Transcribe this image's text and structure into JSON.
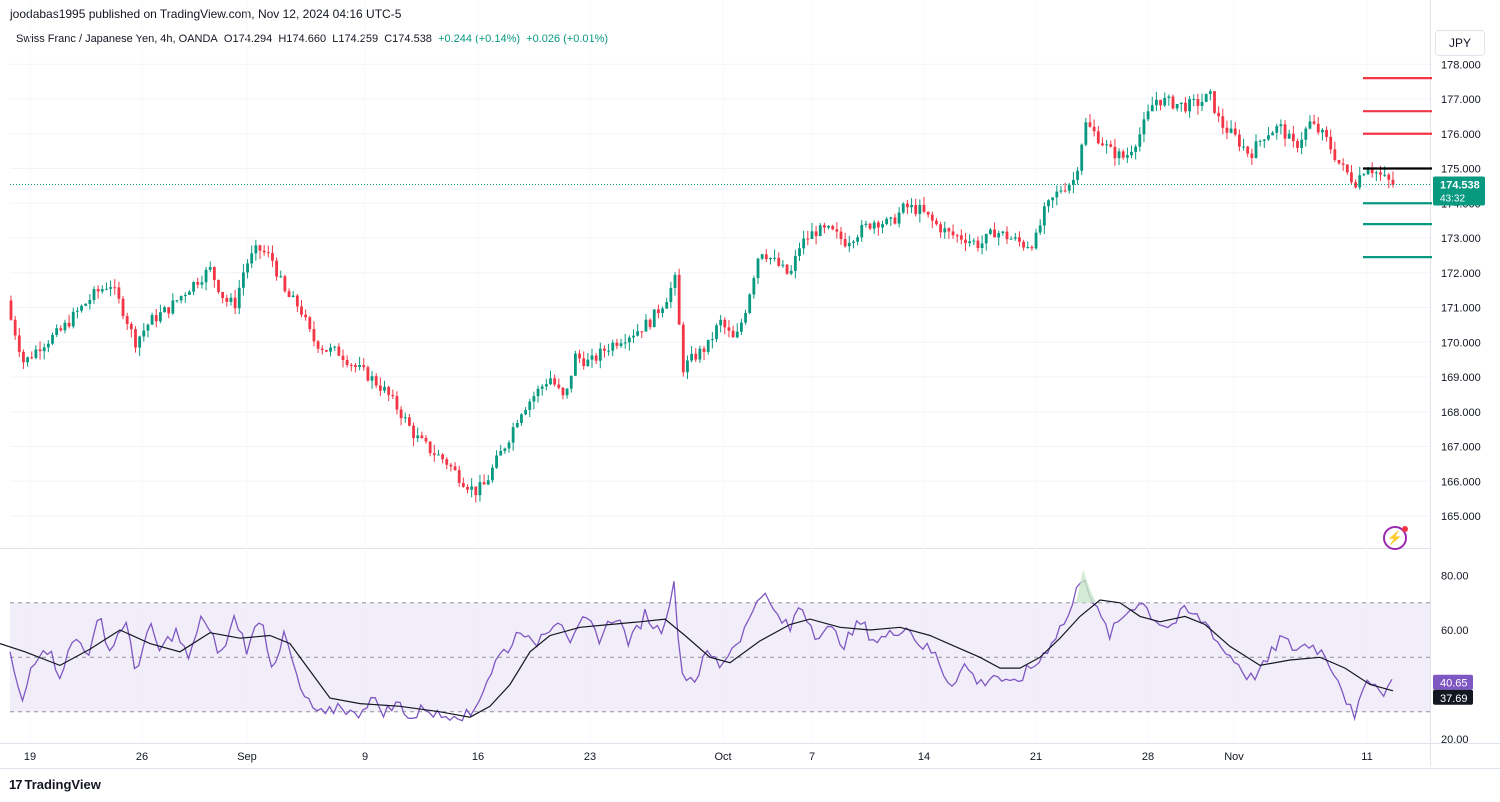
{
  "header": {
    "published": "joodabas1995 published on TradingView.com, Nov 12, 2024 04:16 UTC-5"
  },
  "legend": {
    "symbol": "Swiss Franc / Japanese Yen, 4h, OANDA",
    "open": "O174.294",
    "high": "H174.660",
    "low": "L174.259",
    "close": "C174.538",
    "change": "+0.244 (+0.14%)",
    "extra": "+0.026 (+0.01%)"
  },
  "currency_button": "JPY",
  "price_label": {
    "price": "174.538",
    "countdown": "43:32"
  },
  "rsi_labels": {
    "rsi": "40.65",
    "ma": "37.69"
  },
  "brand": {
    "name": "TradingView"
  },
  "colors": {
    "up": "#089981",
    "down": "#f23645",
    "rsi": "#7e57c2",
    "rsi_band": "#ede7f6"
  },
  "chart_data": [
    {
      "type": "candlestick",
      "title": "Swiss Franc / Japanese Yen, 4h, OANDA",
      "y_ticks": [
        "165.000",
        "166.000",
        "167.000",
        "168.000",
        "169.000",
        "170.000",
        "171.000",
        "172.000",
        "173.000",
        "174.000",
        "175.000",
        "176.000",
        "177.000",
        "178.000"
      ],
      "ylim": [
        164.3,
        178.9
      ],
      "x_labels": [
        "19",
        "26",
        "Sep",
        "9",
        "16",
        "23",
        "Oct",
        "7",
        "14",
        "21",
        "28",
        "Nov",
        "11"
      ],
      "last_price": 174.538,
      "price_path": [
        [
          0,
          171.2
        ],
        [
          12,
          170.6
        ],
        [
          24,
          169.4
        ],
        [
          40,
          169.9
        ],
        [
          60,
          170.3
        ],
        [
          75,
          170.8
        ],
        [
          95,
          171.4
        ],
        [
          110,
          171.7
        ],
        [
          125,
          170.8
        ],
        [
          135,
          170.0
        ],
        [
          150,
          170.6
        ],
        [
          170,
          171.0
        ],
        [
          190,
          171.6
        ],
        [
          210,
          172.1
        ],
        [
          225,
          171.2
        ],
        [
          235,
          171.1
        ],
        [
          245,
          172.2
        ],
        [
          258,
          172.7
        ],
        [
          272,
          172.4
        ],
        [
          285,
          171.4
        ],
        [
          300,
          171.0
        ],
        [
          312,
          170.1
        ],
        [
          325,
          169.8
        ],
        [
          340,
          169.7
        ],
        [
          355,
          169.3
        ],
        [
          370,
          169.0
        ],
        [
          385,
          168.6
        ],
        [
          400,
          168.0
        ],
        [
          415,
          167.3
        ],
        [
          430,
          166.9
        ],
        [
          445,
          166.6
        ],
        [
          460,
          166.1
        ],
        [
          475,
          165.7
        ],
        [
          485,
          165.9
        ],
        [
          495,
          166.5
        ],
        [
          508,
          167.2
        ],
        [
          520,
          168.0
        ],
        [
          535,
          168.5
        ],
        [
          550,
          169.0
        ],
        [
          565,
          168.3
        ],
        [
          575,
          169.6
        ],
        [
          590,
          169.4
        ],
        [
          605,
          169.8
        ],
        [
          620,
          170.1
        ],
        [
          635,
          170.3
        ],
        [
          650,
          170.6
        ],
        [
          665,
          171.2
        ],
        [
          677,
          171.9
        ],
        [
          681,
          169.2
        ],
        [
          695,
          169.6
        ],
        [
          708,
          169.9
        ],
        [
          720,
          170.6
        ],
        [
          735,
          170.0
        ],
        [
          745,
          170.9
        ],
        [
          760,
          172.7
        ],
        [
          775,
          172.3
        ],
        [
          790,
          171.9
        ],
        [
          800,
          172.8
        ],
        [
          815,
          173.2
        ],
        [
          830,
          173.2
        ],
        [
          845,
          172.9
        ],
        [
          860,
          173.2
        ],
        [
          875,
          173.5
        ],
        [
          890,
          173.4
        ],
        [
          905,
          173.9
        ],
        [
          920,
          173.8
        ],
        [
          935,
          173.4
        ],
        [
          950,
          173.1
        ],
        [
          965,
          173.0
        ],
        [
          980,
          172.8
        ],
        [
          995,
          173.2
        ],
        [
          1010,
          173.0
        ],
        [
          1025,
          172.8
        ],
        [
          1035,
          172.9
        ],
        [
          1045,
          173.8
        ],
        [
          1060,
          174.4
        ],
        [
          1075,
          174.7
        ],
        [
          1085,
          176.3
        ],
        [
          1095,
          176.0
        ],
        [
          1110,
          175.5
        ],
        [
          1125,
          175.3
        ],
        [
          1140,
          176.0
        ],
        [
          1155,
          177.0
        ],
        [
          1170,
          176.9
        ],
        [
          1185,
          176.8
        ],
        [
          1200,
          176.9
        ],
        [
          1210,
          177.1
        ],
        [
          1220,
          176.3
        ],
        [
          1235,
          175.9
        ],
        [
          1250,
          175.4
        ],
        [
          1265,
          176.0
        ],
        [
          1280,
          176.2
        ],
        [
          1295,
          175.6
        ],
        [
          1310,
          176.3
        ],
        [
          1325,
          175.9
        ],
        [
          1340,
          175.1
        ],
        [
          1355,
          174.6
        ],
        [
          1367,
          175.1
        ],
        [
          1380,
          174.8
        ],
        [
          1393,
          174.54
        ]
      ]
    },
    {
      "type": "line",
      "title": "RSI",
      "y_ticks": [
        "20.00",
        "40.00",
        "60.00",
        "80.00"
      ],
      "ylim": [
        18.5,
        83.0
      ],
      "bands": {
        "upper": 70,
        "middle": 50,
        "lower": 30
      },
      "series": [
        {
          "values": [
            [
              0,
              56
            ],
            [
              10,
              51
            ],
            [
              22,
              32
            ],
            [
              32,
              48
            ],
            [
              45,
              55
            ],
            [
              60,
              44
            ],
            [
              75,
              57
            ],
            [
              90,
              52
            ],
            [
              100,
              65
            ],
            [
              110,
              52
            ],
            [
              125,
              64
            ],
            [
              135,
              45
            ],
            [
              150,
              61
            ],
            [
              160,
              52
            ],
            [
              175,
              60
            ],
            [
              190,
              48
            ],
            [
              200,
              66
            ],
            [
              210,
              58
            ],
            [
              222,
              51
            ],
            [
              235,
              65
            ],
            [
              248,
              52
            ],
            [
              260,
              66
            ],
            [
              272,
              47
            ],
            [
              285,
              58
            ],
            [
              300,
              38
            ],
            [
              310,
              32
            ],
            [
              325,
              28
            ],
            [
              340,
              33
            ],
            [
              355,
              28
            ],
            [
              370,
              35
            ],
            [
              385,
              30
            ],
            [
              400,
              33
            ],
            [
              412,
              27
            ],
            [
              425,
              32
            ],
            [
              440,
              28
            ],
            [
              455,
              30
            ],
            [
              470,
              28
            ],
            [
              485,
              40
            ],
            [
              498,
              50
            ],
            [
              512,
              55
            ],
            [
              522,
              62
            ],
            [
              532,
              53
            ],
            [
              545,
              60
            ],
            [
              560,
              65
            ],
            [
              572,
              55
            ],
            [
              585,
              64
            ],
            [
              600,
              57
            ],
            [
              615,
              66
            ],
            [
              630,
              55
            ],
            [
              645,
              66
            ],
            [
              660,
              59
            ],
            [
              675,
              77
            ],
            [
              681,
              44
            ],
            [
              695,
              42
            ],
            [
              708,
              52
            ],
            [
              720,
              47
            ],
            [
              735,
              55
            ],
            [
              748,
              62
            ],
            [
              760,
              75
            ],
            [
              775,
              66
            ],
            [
              790,
              60
            ],
            [
              800,
              70
            ],
            [
              815,
              59
            ],
            [
              830,
              60
            ],
            [
              845,
              55
            ],
            [
              860,
              63
            ],
            [
              875,
              56
            ],
            [
              890,
              58
            ],
            [
              905,
              62
            ],
            [
              920,
              55
            ],
            [
              935,
              51
            ],
            [
              950,
              40
            ],
            [
              965,
              47
            ],
            [
              980,
              40
            ],
            [
              995,
              44
            ],
            [
              1010,
              39
            ],
            [
              1025,
              44
            ],
            [
              1040,
              49
            ],
            [
              1055,
              58
            ],
            [
              1070,
              66
            ],
            [
              1083,
              82
            ],
            [
              1095,
              68
            ],
            [
              1110,
              58
            ],
            [
              1125,
              66
            ],
            [
              1140,
              71
            ],
            [
              1155,
              64
            ],
            [
              1170,
              61
            ],
            [
              1185,
              67
            ],
            [
              1200,
              64
            ],
            [
              1210,
              61
            ],
            [
              1222,
              53
            ],
            [
              1235,
              49
            ],
            [
              1250,
              42
            ],
            [
              1265,
              47
            ],
            [
              1280,
              57
            ],
            [
              1295,
              53
            ],
            [
              1310,
              55
            ],
            [
              1325,
              51
            ],
            [
              1340,
              41
            ],
            [
              1355,
              26
            ],
            [
              1367,
              44
            ],
            [
              1380,
              37
            ],
            [
              1393,
              40.65
            ]
          ]
        },
        {
          "values": [
            [
              0,
              55
            ],
            [
              25,
              52
            ],
            [
              60,
              47
            ],
            [
              90,
              53
            ],
            [
              120,
              60
            ],
            [
              150,
              55
            ],
            [
              180,
              52
            ],
            [
              210,
              59
            ],
            [
              240,
              57
            ],
            [
              270,
              58
            ],
            [
              290,
              55
            ],
            [
              310,
              45
            ],
            [
              330,
              35
            ],
            [
              360,
              33
            ],
            [
              400,
              32
            ],
            [
              440,
              30
            ],
            [
              470,
              28
            ],
            [
              490,
              32
            ],
            [
              510,
              40
            ],
            [
              530,
              52
            ],
            [
              550,
              58
            ],
            [
              580,
              61
            ],
            [
              610,
              62
            ],
            [
              640,
              63
            ],
            [
              665,
              64
            ],
            [
              685,
              58
            ],
            [
              710,
              50
            ],
            [
              730,
              48
            ],
            [
              760,
              56
            ],
            [
              790,
              62
            ],
            [
              810,
              64
            ],
            [
              840,
              61
            ],
            [
              870,
              60
            ],
            [
              900,
              61
            ],
            [
              930,
              58
            ],
            [
              955,
              54
            ],
            [
              980,
              50
            ],
            [
              1000,
              46
            ],
            [
              1020,
              46
            ],
            [
              1040,
              50
            ],
            [
              1060,
              57
            ],
            [
              1080,
              65
            ],
            [
              1100,
              71
            ],
            [
              1120,
              70
            ],
            [
              1140,
              65
            ],
            [
              1160,
              63
            ],
            [
              1185,
              65
            ],
            [
              1205,
              62
            ],
            [
              1230,
              54
            ],
            [
              1260,
              47
            ],
            [
              1290,
              49
            ],
            [
              1320,
              50
            ],
            [
              1345,
              46
            ],
            [
              1370,
              40
            ],
            [
              1393,
              37.69
            ]
          ]
        }
      ]
    }
  ]
}
